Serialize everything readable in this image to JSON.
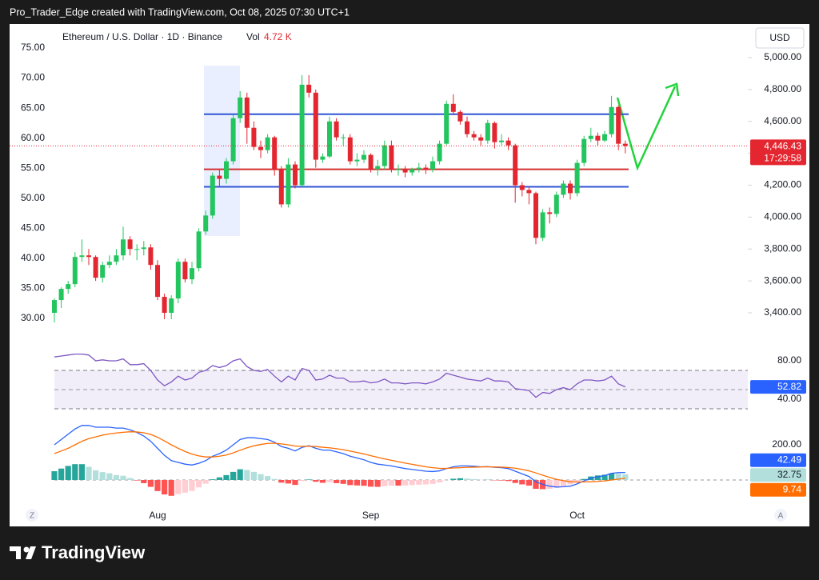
{
  "header": "Pro_Trader_Edge created with TradingView.com, Oct 08, 2025 07:30 UTC+1",
  "footer": "TradingView",
  "chart_data": [
    {
      "type": "candlestick",
      "title": "Ethereum / U.S. Dollar · 1D · Binance",
      "volume_label": "Vol",
      "volume": "4.72 K",
      "currency": "USD",
      "corner_left": "Z",
      "corner_right": "A",
      "categories": [
        null,
        null,
        null,
        null,
        null,
        null,
        null,
        null,
        null,
        null,
        null,
        null,
        null,
        null,
        null,
        "Aug",
        null,
        null,
        null,
        null,
        null,
        null,
        null,
        null,
        null,
        null,
        null,
        null,
        null,
        null,
        null,
        null,
        null,
        null,
        null,
        null,
        null,
        null,
        null,
        null,
        null,
        null,
        null,
        null,
        null,
        null,
        "Sep",
        null,
        null,
        null,
        null,
        null,
        null,
        null,
        null,
        null,
        null,
        null,
        null,
        null,
        null,
        null,
        null,
        null,
        null,
        null,
        null,
        null,
        null,
        null,
        null,
        null,
        null,
        null,
        null,
        null,
        "Oct",
        null,
        null,
        null,
        null,
        null,
        null,
        null
      ],
      "open": [
        3400,
        3480,
        3550,
        3580,
        3750,
        3760,
        3750,
        3620,
        3700,
        3720,
        3760,
        3860,
        3800,
        3800,
        3810,
        3700,
        3500,
        3400,
        3490,
        3720,
        3610,
        3680,
        3910,
        4010,
        4260,
        4240,
        4350,
        4620,
        4750,
        4560,
        4440,
        4420,
        4500,
        4300,
        4080,
        4330,
        4200,
        4830,
        4780,
        4360,
        4380,
        4600,
        4500,
        4500,
        4350,
        4360,
        4390,
        4300,
        4320,
        4450,
        4300,
        4300,
        4280,
        4300,
        4310,
        4300,
        4350,
        4460,
        4710,
        4660,
        4600,
        4520,
        4500,
        4480,
        4590,
        4470,
        4480,
        4450,
        4200,
        4170,
        4150,
        3870,
        4030,
        4020,
        4140,
        4210,
        4150,
        4340,
        4490,
        4510,
        4480,
        4520,
        4690,
        4460
      ],
      "high": [
        3490,
        3560,
        3600,
        3780,
        3860,
        3800,
        3760,
        3720,
        3760,
        3800,
        3940,
        3880,
        3830,
        3850,
        3830,
        3730,
        3520,
        3510,
        3740,
        3740,
        3720,
        3930,
        4040,
        4280,
        4300,
        4370,
        4640,
        4790,
        4780,
        4600,
        4480,
        4520,
        4510,
        4320,
        4370,
        4350,
        4890,
        4890,
        4800,
        4400,
        4630,
        4620,
        4520,
        4520,
        4400,
        4420,
        4400,
        4360,
        4480,
        4480,
        4330,
        4320,
        4310,
        4340,
        4330,
        4380,
        4480,
        4730,
        4770,
        4670,
        4630,
        4540,
        4520,
        4610,
        4600,
        4520,
        4500,
        4460,
        4220,
        4190,
        4160,
        4050,
        4060,
        4160,
        4230,
        4230,
        4360,
        4510,
        4560,
        4530,
        4540,
        4760,
        4700,
        4480
      ],
      "low": [
        3340,
        3430,
        3520,
        3560,
        3720,
        3700,
        3600,
        3590,
        3680,
        3700,
        3730,
        3760,
        3730,
        3760,
        3670,
        3480,
        3360,
        3360,
        3460,
        3590,
        3580,
        3660,
        3890,
        3990,
        4190,
        4210,
        4330,
        4590,
        4460,
        4420,
        4370,
        4400,
        4260,
        4060,
        4060,
        4180,
        4190,
        4750,
        4310,
        4340,
        4370,
        4480,
        4450,
        4330,
        4320,
        4340,
        4280,
        4260,
        4300,
        4280,
        4260,
        4250,
        4260,
        4280,
        4270,
        4280,
        4330,
        4450,
        4640,
        4580,
        4500,
        4480,
        4450,
        4460,
        4430,
        4450,
        4420,
        4090,
        4130,
        4080,
        3830,
        3850,
        3960,
        4000,
        4120,
        4110,
        4130,
        4320,
        4470,
        4450,
        4470,
        4500,
        4420,
        4400
      ],
      "close": [
        3480,
        3550,
        3580,
        3750,
        3760,
        3750,
        3620,
        3700,
        3720,
        3760,
        3860,
        3800,
        3800,
        3810,
        3700,
        3500,
        3400,
        3490,
        3720,
        3610,
        3680,
        3910,
        4010,
        4260,
        4240,
        4350,
        4620,
        4750,
        4560,
        4440,
        4420,
        4500,
        4300,
        4080,
        4330,
        4200,
        4830,
        4780,
        4360,
        4380,
        4600,
        4500,
        4500,
        4350,
        4360,
        4390,
        4300,
        4320,
        4450,
        4300,
        4300,
        4280,
        4300,
        4310,
        4300,
        4350,
        4460,
        4710,
        4660,
        4600,
        4520,
        4500,
        4480,
        4590,
        4470,
        4480,
        4450,
        4200,
        4170,
        4150,
        3870,
        4030,
        4020,
        4140,
        4210,
        4150,
        4340,
        4490,
        4510,
        4480,
        4520,
        4690,
        4460,
        4446.43
      ],
      "up_color": "#22c55e",
      "down_color": "#e3262f",
      "ylim": [
        3229.5,
        5185.6
      ],
      "yticks": [
        {
          "value": 5000,
          "label": "5,000.00"
        },
        {
          "value": 4800,
          "label": "4,800.00"
        },
        {
          "value": 4600,
          "label": "4,600.00"
        },
        {
          "value": 4400,
          "label": "4,400.00"
        },
        {
          "value": 4200,
          "label": "4,200.00"
        },
        {
          "value": 4000,
          "label": "4,000.00"
        },
        {
          "value": 3800,
          "label": "3,800.00"
        },
        {
          "value": 3600,
          "label": "3,600.00"
        },
        {
          "value": 3400,
          "label": "3,400.00"
        }
      ],
      "y2lim": [
        26.4,
        78.33
      ],
      "y2ticks": [
        {
          "value": 75,
          "label": "75.00"
        },
        {
          "value": 70,
          "label": "70.00"
        },
        {
          "value": 65,
          "label": "65.00"
        },
        {
          "value": 60,
          "label": "60.00"
        },
        {
          "value": 55,
          "label": "55.00"
        },
        {
          "value": 50,
          "label": "50.00"
        },
        {
          "value": 45,
          "label": "45.00"
        },
        {
          "value": 40,
          "label": "40.00"
        },
        {
          "value": 35,
          "label": "35.00"
        },
        {
          "value": 30,
          "label": "30.00"
        }
      ],
      "levels": [
        {
          "value": 4645,
          "color": "#2f55d4"
        },
        {
          "value": 4300,
          "color": "#d32f2f"
        },
        {
          "value": 4190,
          "color": "#2f55d4"
        }
      ],
      "last_price": {
        "value": 4446.43,
        "label": "4,446.43"
      },
      "countdown": "17:29:58"
    },
    {
      "type": "line",
      "color": "#7e57c2",
      "values": [
        84,
        85,
        86,
        87,
        87,
        86,
        80,
        81,
        80,
        80,
        82,
        76,
        76,
        77,
        70,
        60,
        54,
        58,
        64,
        60,
        62,
        68,
        70,
        75,
        73,
        75,
        80,
        82,
        74,
        70,
        69,
        71,
        64,
        58,
        64,
        60,
        72,
        70,
        60,
        61,
        65,
        62,
        62,
        58,
        58,
        59,
        57,
        58,
        61,
        57,
        57,
        56,
        57,
        57,
        56,
        58,
        61,
        67,
        65,
        63,
        61,
        60,
        59,
        62,
        59,
        59,
        58,
        51,
        50,
        49,
        42,
        47,
        46,
        50,
        52,
        50,
        56,
        60,
        60,
        59,
        60,
        64,
        56,
        52.82
      ],
      "ylim": [
        26.67,
        89.17
      ],
      "yticks": [
        {
          "value": 80,
          "label": "80.00"
        },
        {
          "value": 40,
          "label": "40.00"
        }
      ],
      "band": [
        30,
        70
      ],
      "midline": 50
    },
    {
      "type": "macd",
      "macd": {
        "color": "#2962ff",
        "values": [
          200,
          230,
          260,
          290,
          310,
          310,
          300,
          300,
          300,
          295,
          295,
          285,
          270,
          250,
          220,
          180,
          140,
          110,
          100,
          90,
          85,
          95,
          110,
          135,
          150,
          170,
          200,
          230,
          240,
          240,
          235,
          230,
          215,
          190,
          180,
          165,
          185,
          195,
          180,
          170,
          170,
          160,
          150,
          135,
          125,
          115,
          100,
          90,
          85,
          80,
          72,
          65,
          60,
          55,
          50,
          48,
          52,
          65,
          75,
          80,
          80,
          78,
          75,
          76,
          72,
          70,
          65,
          50,
          35,
          20,
          -10,
          -25,
          -35,
          -40,
          -38,
          -35,
          -22,
          -5,
          10,
          18,
          25,
          38,
          42,
          42.49
        ]
      },
      "signal": {
        "color": "#ff6d00",
        "values": [
          150,
          165,
          180,
          200,
          220,
          235,
          245,
          255,
          262,
          267,
          271,
          274,
          273,
          268,
          259,
          243,
          222,
          200,
          180,
          162,
          147,
          137,
          131,
          131,
          135,
          142,
          154,
          169,
          183,
          194,
          202,
          208,
          209,
          205,
          200,
          193,
          191,
          192,
          190,
          186,
          183,
          178,
          172,
          164,
          156,
          148,
          138,
          129,
          120,
          112,
          104,
          96,
          89,
          82,
          75,
          70,
          66,
          66,
          68,
          70,
          72,
          73,
          74,
          75,
          74,
          73,
          71,
          67,
          60,
          52,
          40,
          27,
          15,
          4,
          -4,
          -10,
          -12,
          -11,
          -10,
          -8,
          -5,
          0,
          5,
          9.74
        ]
      },
      "histogram": {
        "colors": [
          "#26a69a",
          "#b2dfdb",
          "#ff5252",
          "#ffcdd2"
        ],
        "values": [
          50,
          65,
          80,
          90,
          90,
          75,
          55,
          45,
          38,
          28,
          24,
          11,
          -3,
          -18,
          -39,
          -63,
          -82,
          -90,
          -80,
          -72,
          -62,
          -42,
          -21,
          4,
          15,
          28,
          46,
          61,
          57,
          46,
          33,
          22,
          6,
          -15,
          -20,
          -28,
          -6,
          3,
          -10,
          -16,
          -13,
          -18,
          -22,
          -29,
          -31,
          -33,
          -38,
          -39,
          -35,
          -32,
          -32,
          -31,
          -29,
          -27,
          -25,
          -22,
          -14,
          -1,
          7,
          10,
          8,
          5,
          1,
          1,
          -2,
          -3,
          -6,
          -17,
          -25,
          -32,
          -50,
          -52,
          -50,
          -44,
          -34,
          -25,
          -10,
          6,
          20,
          26,
          30,
          38,
          37,
          32.75
        ]
      },
      "ylim": [
        -145.5,
        363.6
      ],
      "yticks": [
        {
          "value": 200,
          "label": "200.00"
        }
      ]
    }
  ]
}
